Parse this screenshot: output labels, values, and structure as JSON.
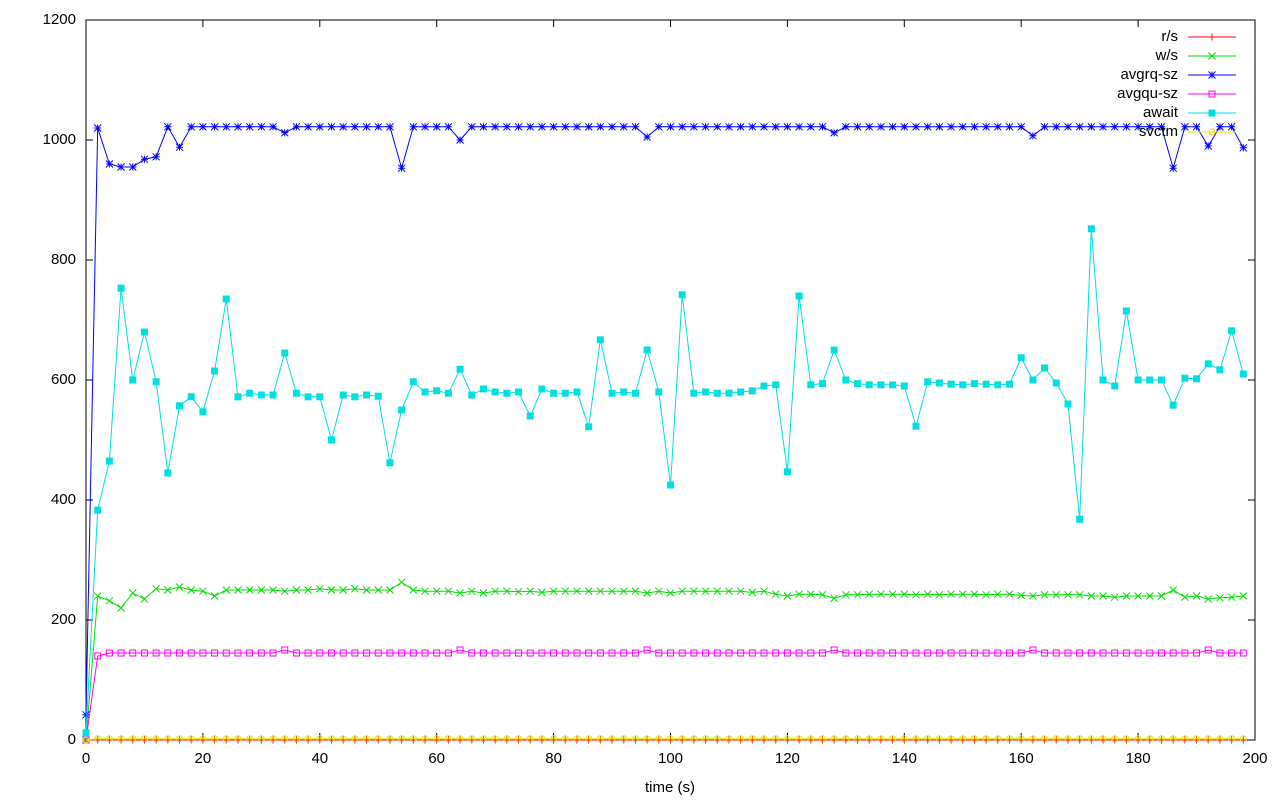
{
  "chart_data": {
    "type": "line",
    "xlabel": "time (s)",
    "xlim": [
      0,
      200
    ],
    "xticks": [
      0,
      20,
      40,
      60,
      80,
      100,
      120,
      140,
      160,
      180,
      200
    ],
    "ylim": [
      0,
      1200
    ],
    "yticks": [
      0,
      200,
      400,
      600,
      800,
      1000,
      1200
    ],
    "legend": "top-right",
    "x": [
      0,
      2,
      4,
      6,
      8,
      10,
      12,
      14,
      16,
      18,
      20,
      22,
      24,
      26,
      28,
      30,
      32,
      34,
      36,
      38,
      40,
      42,
      44,
      46,
      48,
      50,
      52,
      54,
      56,
      58,
      60,
      62,
      64,
      66,
      68,
      70,
      72,
      74,
      76,
      78,
      80,
      82,
      84,
      86,
      88,
      90,
      92,
      94,
      96,
      98,
      100,
      102,
      104,
      106,
      108,
      110,
      112,
      114,
      116,
      118,
      120,
      122,
      124,
      126,
      128,
      130,
      132,
      134,
      136,
      138,
      140,
      142,
      144,
      146,
      148,
      150,
      152,
      154,
      156,
      158,
      160,
      162,
      164,
      166,
      168,
      170,
      172,
      174,
      176,
      178,
      180,
      182,
      184,
      186,
      188,
      190,
      192,
      194,
      196,
      198
    ],
    "series": [
      {
        "name": "r/s",
        "color": "#ff0000",
        "marker": "plus",
        "values": [
          0,
          0,
          0,
          0,
          0,
          0,
          0,
          0,
          0,
          0,
          0,
          0,
          0,
          0,
          0,
          0,
          0,
          0,
          0,
          0,
          0,
          0,
          0,
          0,
          0,
          0,
          0,
          0,
          0,
          0,
          0,
          0,
          0,
          0,
          0,
          0,
          0,
          0,
          0,
          0,
          0,
          0,
          0,
          0,
          0,
          0,
          0,
          0,
          0,
          0,
          0,
          0,
          0,
          0,
          0,
          0,
          0,
          0,
          0,
          0,
          0,
          0,
          0,
          0,
          0,
          0,
          0,
          0,
          0,
          0,
          0,
          0,
          0,
          0,
          0,
          0,
          0,
          0,
          0,
          0,
          0,
          0,
          0,
          0,
          0,
          0,
          0,
          0,
          0,
          0,
          0,
          0,
          0,
          0,
          0,
          0,
          0,
          0,
          0,
          0
        ]
      },
      {
        "name": "w/s",
        "color": "#00e000",
        "marker": "cross",
        "values": [
          0,
          240,
          232,
          220,
          245,
          235,
          252,
          250,
          255,
          250,
          248,
          240,
          250,
          250,
          250,
          250,
          250,
          248,
          250,
          250,
          252,
          250,
          250,
          252,
          250,
          250,
          250,
          263,
          250,
          248,
          248,
          248,
          245,
          248,
          245,
          248,
          248,
          247,
          248,
          246,
          248,
          248,
          248,
          248,
          248,
          248,
          248,
          248,
          245,
          248,
          245,
          248,
          248,
          248,
          248,
          248,
          248,
          246,
          248,
          243,
          240,
          243,
          243,
          242,
          236,
          242,
          242,
          243,
          243,
          243,
          243,
          242,
          243,
          242,
          243,
          243,
          243,
          242,
          243,
          243,
          241,
          240,
          242,
          242,
          242,
          242,
          240,
          240,
          238,
          240,
          240,
          240,
          240,
          250,
          238,
          240,
          235,
          237,
          238,
          240
        ]
      },
      {
        "name": "avgrq-sz",
        "color": "#0000ff",
        "marker": "star",
        "values": [
          42,
          1020,
          960,
          955,
          955,
          968,
          972,
          1022,
          988,
          1022,
          1022,
          1022,
          1022,
          1022,
          1022,
          1022,
          1022,
          1012,
          1022,
          1022,
          1022,
          1022,
          1022,
          1022,
          1022,
          1022,
          1022,
          953,
          1022,
          1022,
          1022,
          1022,
          1000,
          1022,
          1022,
          1022,
          1022,
          1022,
          1022,
          1022,
          1022,
          1022,
          1022,
          1022,
          1022,
          1022,
          1022,
          1022,
          1005,
          1022,
          1022,
          1022,
          1022,
          1022,
          1022,
          1022,
          1022,
          1022,
          1022,
          1022,
          1022,
          1022,
          1022,
          1022,
          1012,
          1022,
          1022,
          1022,
          1022,
          1022,
          1022,
          1022,
          1022,
          1022,
          1022,
          1022,
          1022,
          1022,
          1022,
          1022,
          1022,
          1007,
          1022,
          1022,
          1022,
          1022,
          1022,
          1022,
          1022,
          1022,
          1022,
          1022,
          1022,
          953,
          1022,
          1022,
          990,
          1022,
          1022,
          987
        ]
      },
      {
        "name": "avgqu-sz",
        "color": "#ff00ff",
        "marker": "open-square",
        "values": [
          0,
          140,
          145,
          145,
          145,
          145,
          145,
          145,
          145,
          145,
          145,
          145,
          145,
          145,
          145,
          145,
          145,
          150,
          145,
          145,
          145,
          145,
          145,
          145,
          145,
          145,
          145,
          145,
          145,
          145,
          145,
          145,
          150,
          145,
          145,
          145,
          145,
          145,
          145,
          145,
          145,
          145,
          145,
          145,
          145,
          145,
          145,
          145,
          150,
          145,
          145,
          145,
          145,
          145,
          145,
          145,
          145,
          145,
          145,
          145,
          145,
          145,
          145,
          145,
          150,
          145,
          145,
          145,
          145,
          145,
          145,
          145,
          145,
          145,
          145,
          145,
          145,
          145,
          145,
          145,
          145,
          150,
          145,
          145,
          145,
          145,
          145,
          145,
          145,
          145,
          145,
          145,
          145,
          145,
          145,
          145,
          150,
          145,
          145,
          145
        ]
      },
      {
        "name": "await",
        "color": "#00e0e0",
        "marker": "filled-square",
        "values": [
          12,
          383,
          465,
          753,
          600,
          680,
          597,
          445,
          557,
          572,
          547,
          615,
          735,
          572,
          578,
          575,
          575,
          645,
          578,
          572,
          572,
          500,
          575,
          572,
          575,
          573,
          462,
          550,
          597,
          580,
          582,
          578,
          618,
          575,
          585,
          580,
          578,
          580,
          540,
          585,
          578,
          578,
          580,
          522,
          667,
          578,
          580,
          578,
          650,
          580,
          425,
          742,
          578,
          580,
          578,
          578,
          580,
          582,
          590,
          592,
          447,
          740,
          592,
          594,
          650,
          600,
          594,
          592,
          592,
          592,
          590,
          523,
          597,
          595,
          593,
          592,
          594,
          593,
          592,
          593,
          637,
          600,
          620,
          595,
          560,
          368,
          852,
          600,
          590,
          715,
          600,
          600,
          600,
          558,
          603,
          602,
          627,
          617,
          682,
          610
        ]
      },
      {
        "name": "svctm",
        "color": "#e0e000",
        "marker": "open-circle",
        "values": [
          0,
          2,
          2,
          2,
          2,
          2,
          2,
          2,
          2,
          2,
          2,
          2,
          2,
          2,
          2,
          2,
          2,
          2,
          2,
          2,
          2,
          2,
          2,
          2,
          2,
          2,
          2,
          2,
          2,
          2,
          2,
          2,
          2,
          2,
          2,
          2,
          2,
          2,
          2,
          2,
          2,
          2,
          2,
          2,
          2,
          2,
          2,
          2,
          2,
          2,
          2,
          2,
          2,
          2,
          2,
          2,
          2,
          2,
          2,
          2,
          2,
          2,
          2,
          2,
          2,
          2,
          2,
          2,
          2,
          2,
          2,
          2,
          2,
          2,
          2,
          2,
          2,
          2,
          2,
          2,
          2,
          2,
          2,
          2,
          2,
          2,
          2,
          2,
          2,
          2,
          2,
          2,
          2,
          2,
          2,
          2,
          2,
          2,
          2,
          2
        ]
      }
    ]
  }
}
